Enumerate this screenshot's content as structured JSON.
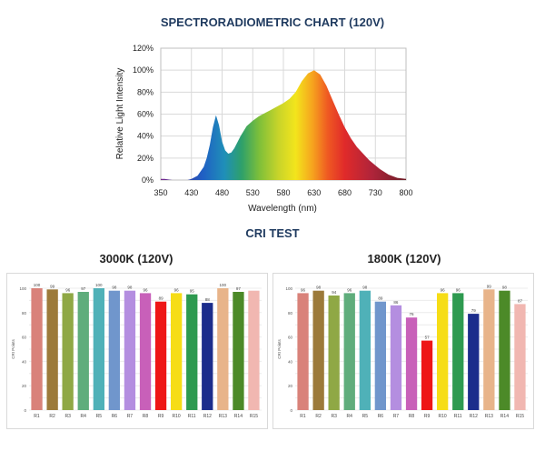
{
  "spectro": {
    "title": "SPECTRORADIOMETRIC CHART (120V)"
  },
  "cri": {
    "title": "CRI TEST",
    "left_title": "3000K (120V)",
    "right_title": "1800K (120V)"
  },
  "chart_data": [
    {
      "type": "area",
      "title": "SPECTRORADIOMETRIC CHART (120V)",
      "xlabel": "Wavelength (nm)",
      "ylabel": "Relative Light Intensity",
      "xlim": [
        350,
        800
      ],
      "ylim": [
        0,
        120
      ],
      "xticks": [
        "350",
        "430",
        "480",
        "530",
        "580",
        "630",
        "680",
        "730",
        "800"
      ],
      "yticks": [
        "0%",
        "20%",
        "40%",
        "60%",
        "80%",
        "100%",
        "120%"
      ],
      "grid": true,
      "x": [
        350,
        360,
        380,
        400,
        420,
        430,
        440,
        450,
        455,
        460,
        465,
        470,
        475,
        480,
        485,
        490,
        495,
        500,
        510,
        520,
        530,
        540,
        550,
        560,
        570,
        580,
        590,
        600,
        610,
        620,
        630,
        640,
        650,
        660,
        670,
        680,
        690,
        700,
        720,
        740,
        760,
        780,
        800
      ],
      "series": [
        {
          "values": [
            1,
            1,
            0,
            0,
            0,
            1,
            4,
            12,
            20,
            32,
            48,
            59,
            50,
            35,
            27,
            24,
            25,
            29,
            40,
            49,
            54,
            58,
            61,
            64,
            67,
            70,
            74,
            80,
            90,
            97,
            100,
            96,
            86,
            73,
            60,
            48,
            38,
            30,
            18,
            10,
            5,
            2,
            1
          ]
        }
      ]
    },
    {
      "type": "bar",
      "title": "3000K (120V)",
      "ylabel": "CRI Points",
      "ylim": [
        0,
        100
      ],
      "yticks": [
        "0",
        "10",
        "20",
        "30",
        "40",
        "50",
        "60",
        "70",
        "80",
        "90",
        "100"
      ],
      "categories": [
        "R1",
        "R2",
        "R3",
        "R4",
        "R5",
        "R6",
        "R7",
        "R8",
        "R9",
        "R10",
        "R11",
        "R12",
        "R13",
        "R14",
        "R15"
      ],
      "values": [
        100,
        99,
        96,
        97,
        100,
        98,
        98,
        96,
        89,
        96,
        95,
        88,
        100,
        97,
        98
      ],
      "data_labels": [
        "100",
        "99",
        "96",
        "97",
        "100",
        "98",
        "98",
        "96",
        "89",
        "96",
        "95",
        "88",
        "100",
        "97",
        ""
      ],
      "colors": [
        "#d9827a",
        "#9c7a3a",
        "#8fa845",
        "#5fad7c",
        "#4fb1b8",
        "#7096cc",
        "#b48ee0",
        "#c860b9",
        "#ee1616",
        "#f6dd16",
        "#2e9a50",
        "#1c2d8c",
        "#e8b48a",
        "#4c8a28",
        "#f1b7b1"
      ]
    },
    {
      "type": "bar",
      "title": "1800K (120V)",
      "ylabel": "CRI Points",
      "ylim": [
        0,
        100
      ],
      "yticks": [
        "0",
        "10",
        "20",
        "30",
        "40",
        "50",
        "60",
        "70",
        "80",
        "90",
        "100"
      ],
      "categories": [
        "R1",
        "R2",
        "R3",
        "R4",
        "R5",
        "R6",
        "R7",
        "R8",
        "R9",
        "R10",
        "R11",
        "R12",
        "R13",
        "R14",
        "R15"
      ],
      "values": [
        96,
        98,
        94,
        96,
        98,
        89,
        86,
        76,
        57,
        96,
        96,
        79,
        99,
        98,
        87
      ],
      "data_labels": [
        "96",
        "98",
        "94",
        "96",
        "98",
        "89",
        "86",
        "76",
        "57",
        "96",
        "96",
        "79",
        "99",
        "98",
        "87"
      ],
      "colors": [
        "#d9827a",
        "#9c7a3a",
        "#8fa845",
        "#5fad7c",
        "#4fb1b8",
        "#7096cc",
        "#b48ee0",
        "#c860b9",
        "#ee1616",
        "#f6dd16",
        "#2e9a50",
        "#1c2d8c",
        "#e8b48a",
        "#4c8a28",
        "#f1b7b1"
      ]
    }
  ]
}
